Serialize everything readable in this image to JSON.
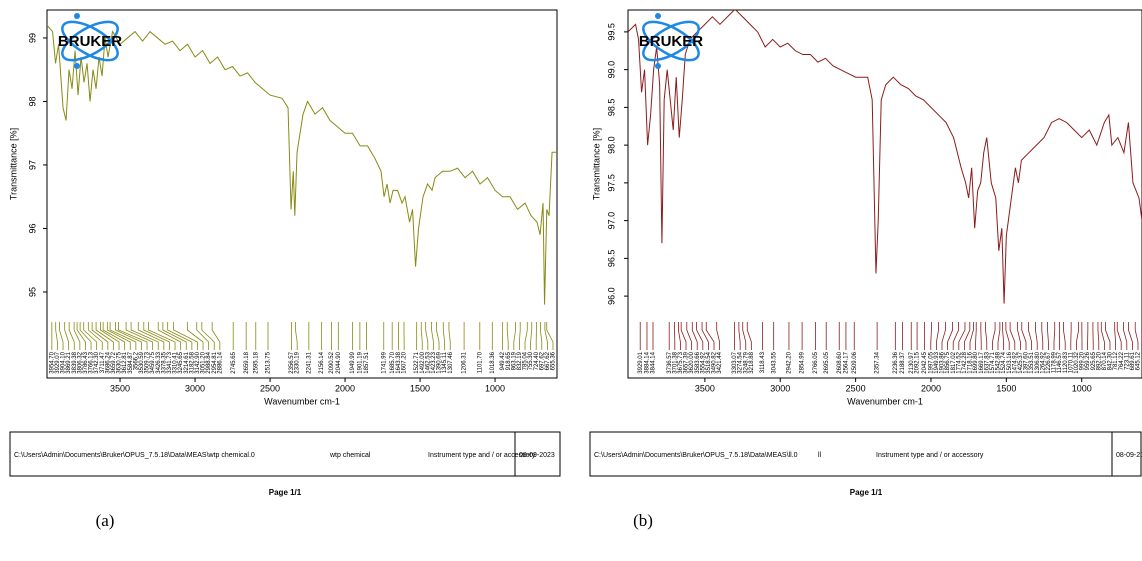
{
  "chart_data": [
    {
      "type": "line",
      "logo": "BRUKER",
      "color": "#878b13",
      "y_label": "Transmittance [%]",
      "x_label": "Wavenumber cm-1",
      "xlim": [
        3987,
        587
      ],
      "xticks": [
        3500,
        3000,
        2500,
        2000,
        1500,
        1000
      ],
      "ylim": [
        94.59,
        99.44
      ],
      "yticks": [
        95,
        96,
        97,
        98,
        99
      ],
      "x": [
        3987,
        3950,
        3930,
        3910,
        3880,
        3860,
        3840,
        3820,
        3800,
        3780,
        3760,
        3740,
        3720,
        3700,
        3680,
        3660,
        3640,
        3620,
        3600,
        3580,
        3550,
        3500,
        3450,
        3400,
        3350,
        3300,
        3250,
        3200,
        3150,
        3100,
        3050,
        3000,
        2950,
        2900,
        2850,
        2800,
        2750,
        2700,
        2650,
        2600,
        2550,
        2500,
        2420,
        2380,
        2360,
        2345,
        2335,
        2320,
        2300,
        2280,
        2250,
        2200,
        2150,
        2100,
        2050,
        2000,
        1950,
        1900,
        1850,
        1800,
        1760,
        1740,
        1720,
        1700,
        1680,
        1650,
        1620,
        1600,
        1570,
        1550,
        1530,
        1510,
        1480,
        1450,
        1420,
        1400,
        1350,
        1300,
        1250,
        1200,
        1150,
        1100,
        1050,
        1000,
        950,
        900,
        850,
        800,
        760,
        720,
        700,
        680,
        670,
        655,
        640,
        620,
        600,
        587
      ],
      "values": [
        99.2,
        99.1,
        98.6,
        98.9,
        97.9,
        97.7,
        98.5,
        98.2,
        98.8,
        98.1,
        98.7,
        98.3,
        98.6,
        98.0,
        98.5,
        98.2,
        98.7,
        98.4,
        99.0,
        98.7,
        99.1,
        98.9,
        99.0,
        99.1,
        98.95,
        99.1,
        99.0,
        98.9,
        98.95,
        98.8,
        98.9,
        98.7,
        98.8,
        98.6,
        98.7,
        98.5,
        98.55,
        98.4,
        98.45,
        98.3,
        98.2,
        98.1,
        98.05,
        97.9,
        96.3,
        96.9,
        96.2,
        97.2,
        97.5,
        97.8,
        98.0,
        97.8,
        97.9,
        97.7,
        97.6,
        97.5,
        97.5,
        97.3,
        97.3,
        97.1,
        96.9,
        96.5,
        96.7,
        96.4,
        96.6,
        96.6,
        96.4,
        96.5,
        96.1,
        96.3,
        95.4,
        96.0,
        96.5,
        96.7,
        96.6,
        96.8,
        96.9,
        96.9,
        96.95,
        96.8,
        96.9,
        96.7,
        96.8,
        96.6,
        96.5,
        96.5,
        96.3,
        96.4,
        96.2,
        96.1,
        95.9,
        96.4,
        94.8,
        96.3,
        96.2,
        97.2,
        97.2,
        97.2
      ],
      "peaks": [
        {
          "value": 3954.7,
          "label": "3954.70"
        },
        3929.07,
        {
          "value": 3904.1,
          "label": "3904.10"
        },
        3869.21,
        3839.38,
        3806.32,
        3786.43,
        3766.13,
        {
          "value": 3742.3,
          "label": "3742.30"
        },
        3711.47,
        3686.24,
        3659.72,
        3630.75,
        3612.81,
        3584.87,
        3566.2,
        3530.59,
        3509.73,
        3459.75,
        3426.33,
        3378.35,
        3341.73,
        3310.41,
        3245.65,
        3214.61,
        3182.58,
        {
          "value": 3142.9,
          "label": "3142.90"
        },
        {
          "value": 3051.2,
          "label": "3051.20"
        },
        2988.84,
        2954.81,
        2886.14,
        2745.65,
        2659.18,
        2595.18,
        2513.75,
        2356.57,
        2330.19,
        2241.31,
        2156.14,
        2090.52,
        {
          "value": 2044.9,
          "label": "2044.90"
        },
        1949.99,
        1901.19,
        1857.51,
        1741.99,
        {
          "value": 1685.7,
          "label": "1685.70"
        },
        1643.38,
        {
          "value": 1607.2,
          "label": "1607.20"
        },
        1522.71,
        {
          "value": 1492,
          "label": "1492.00"
        },
        1462.53,
        1423.23,
        1390.69,
        1345.11,
        1307.46,
        1206.31,
        {
          "value": 1101.7,
          "label": "1101.70"
        },
        1018.36,
        949.42,
        918.65,
        863.19,
        832.19,
        785.04,
        {
          "value": 755.3,
          "label": "755.30"
        },
        {
          "value": 724.4,
          "label": "724.40"
        },
        697.62,
        667.62,
        655.36
      ],
      "footer": {
        "path": "C:\\Users\\Admin\\Documents\\Bruker\\OPUS_7.5.18\\Data\\MEAS\\wtp chemical.0",
        "sample": "wtp chemical",
        "instrument": "Instrument type and / or accessory",
        "date": "08-09-2023"
      },
      "page": "Page 1/1",
      "caption": "(a)"
    },
    {
      "type": "line",
      "logo": "BRUKER",
      "color": "#8b1c1c",
      "y_label": "Transmittance [%]",
      "x_label": "Wavenumber cm-1",
      "xlim": [
        4010,
        600
      ],
      "xticks": [
        3500,
        3000,
        2500,
        2000,
        1500,
        1000
      ],
      "ylim": [
        95.71,
        99.79
      ],
      "yticks": [
        {
          "value": 96,
          "label": "96.0"
        },
        96.5,
        {
          "value": 97,
          "label": "97.0"
        },
        97.5,
        {
          "value": 98,
          "label": "98.0"
        },
        98.5,
        {
          "value": 99,
          "label": "99.0"
        },
        99.5
      ],
      "x": [
        4010,
        3960,
        3940,
        3920,
        3900,
        3880,
        3860,
        3840,
        3820,
        3800,
        3785,
        3770,
        3750,
        3730,
        3710,
        3690,
        3670,
        3650,
        3630,
        3600,
        3550,
        3500,
        3450,
        3400,
        3350,
        3300,
        3250,
        3200,
        3150,
        3100,
        3050,
        3000,
        2950,
        2900,
        2850,
        2800,
        2750,
        2700,
        2650,
        2600,
        2550,
        2500,
        2420,
        2390,
        2365,
        2350,
        2330,
        2300,
        2250,
        2200,
        2150,
        2100,
        2050,
        2000,
        1950,
        1900,
        1850,
        1800,
        1770,
        1750,
        1730,
        1710,
        1690,
        1670,
        1650,
        1630,
        1600,
        1570,
        1550,
        1530,
        1515,
        1500,
        1480,
        1460,
        1440,
        1420,
        1400,
        1350,
        1300,
        1250,
        1200,
        1150,
        1100,
        1050,
        1000,
        950,
        900,
        850,
        820,
        800,
        760,
        720,
        690,
        660,
        620,
        600
      ],
      "values": [
        99.5,
        99.6,
        99.4,
        98.7,
        99.0,
        98.0,
        98.4,
        99.0,
        99.3,
        98.8,
        96.7,
        98.6,
        99.0,
        98.6,
        98.2,
        98.9,
        98.1,
        98.6,
        99.2,
        99.4,
        99.5,
        99.6,
        99.7,
        99.6,
        99.7,
        99.8,
        99.7,
        99.6,
        99.5,
        99.3,
        99.4,
        99.3,
        99.35,
        99.25,
        99.2,
        99.2,
        99.1,
        99.15,
        99.05,
        99.0,
        98.95,
        98.9,
        98.9,
        98.6,
        96.3,
        97.0,
        98.6,
        98.8,
        98.9,
        98.8,
        98.75,
        98.65,
        98.6,
        98.5,
        98.4,
        98.3,
        98.1,
        97.7,
        97.5,
        97.3,
        97.7,
        96.9,
        97.4,
        97.5,
        97.9,
        98.1,
        97.5,
        97.3,
        96.6,
        96.9,
        95.9,
        96.8,
        97.1,
        97.4,
        97.7,
        97.5,
        97.8,
        97.9,
        98.0,
        98.1,
        98.3,
        98.35,
        98.3,
        98.2,
        98.1,
        98.2,
        98.0,
        98.3,
        98.4,
        98.0,
        98.1,
        97.9,
        98.3,
        97.5,
        97.3,
        97.0
      ],
      "peaks": [
        3929.01,
        3884.14,
        3844.14,
        3736.57,
        3701.38,
        3675.73,
        3657.39,
        {
          "value": 3620,
          "label": "3620.00"
        },
        3583.66,
        3554.92,
        3518.54,
        3490.82,
        3421.44,
        3303.07,
        3274.54,
        3248.79,
        3218.88,
        3118.43,
        3043.55,
        {
          "value": 2942.2,
          "label": "2942.20"
        },
        2854.99,
        2766.05,
        2695.05,
        {
          "value": 2608.6,
          "label": "2608.60"
        },
        2564.17,
        2509.06,
        2357.34,
        2236.36,
        2188.37,
        2130.97,
        2092.15,
        2042.45,
        1997.05,
        1949.93,
        1903.86,
        1856.75,
        1817.02,
        1774.52,
        1742.28,
        1718.16,
        {
          "value": 1699.8,
          "label": "1699.80"
        },
        1669.17,
        1637.83,
        1574.71,
        1542.88,
        1524.74,
        1503.16,
        1474.92,
        1425.37,
        {
          "value": 1397.6,
          "label": "1397.60"
        },
        1353.51,
        {
          "value": 1306.8,
          "label": "1306.80"
        },
        1264.92,
        1226.67,
        1178.99,
        1146.57,
        1120.83,
        1070.11,
        1020.32,
        {
          "value": 999.2,
          "label": "999.20"
        },
        959.26,
        925.65,
        {
          "value": 892.2,
          "label": "892.20"
        },
        870.14,
        {
          "value": 842.3,
          "label": "842.30"
        },
        781.12,
        764.22,
        723.11,
        689.61,
        645.12
      ],
      "footer": {
        "path": "C:\\Users\\Admin\\Documents\\Bruker\\OPUS_7.5.18\\Data\\MEAS\\ll.0",
        "sample": "ll",
        "instrument": "Instrument type and / or accessory",
        "date": "08-09-2023"
      },
      "page": "Page 1/1",
      "caption": "(b)"
    }
  ]
}
